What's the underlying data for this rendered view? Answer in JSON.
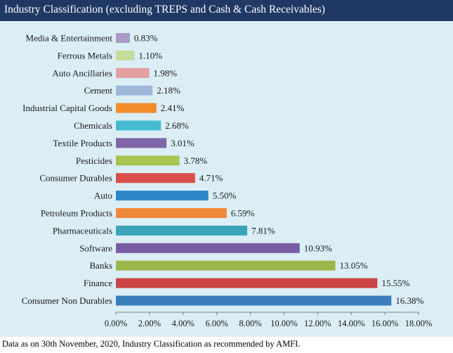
{
  "header": {
    "title": "Industry Classification (excluding TREPS and Cash & Cash Receivables)"
  },
  "footer": {
    "note": "Data as on 30th November, 2020, Industry Classification as recommended by AMFI."
  },
  "chart_data": {
    "type": "bar",
    "orientation": "horizontal",
    "title": "Industry Classification (excluding TREPS and Cash & Cash Receivables)",
    "categories": [
      "Media & Entertainment",
      "Ferrous Metals",
      "Auto Ancillaries",
      "Cement",
      "Industrial Capital Goods",
      "Chemicals",
      "Textile Products",
      "Pesticides",
      "Consumer Durables",
      "Auto",
      "Petroleum Products",
      "Pharmaceuticals",
      "Software",
      "Banks",
      "Finance",
      "Consumer Non Durables"
    ],
    "values": [
      0.83,
      1.1,
      1.98,
      2.18,
      2.41,
      2.68,
      3.01,
      3.78,
      4.71,
      5.5,
      6.59,
      7.81,
      10.93,
      13.05,
      15.55,
      16.38
    ],
    "value_labels": [
      "0.83%",
      "1.10%",
      "1.98%",
      "2.18%",
      "2.41%",
      "2.68%",
      "3.01%",
      "3.78%",
      "4.71%",
      "5.50%",
      "6.59%",
      "7.81%",
      "10.93%",
      "13.05%",
      "15.55%",
      "16.38%"
    ],
    "colors": [
      "#a99bc6",
      "#c5dc9a",
      "#e3a0a0",
      "#9fb8d9",
      "#f28c28",
      "#45bcd2",
      "#7f65a8",
      "#a9c450",
      "#d94f4a",
      "#2e86c8",
      "#f0883a",
      "#3aa4b8",
      "#7a5ca4",
      "#9bb54a",
      "#cc4444",
      "#3a7fbc"
    ],
    "xlim": [
      0,
      18
    ],
    "xticks": [
      "0.00%",
      "2.00%",
      "4.00%",
      "6.00%",
      "8.00%",
      "10.00%",
      "12.00%",
      "14.00%",
      "16.00%",
      "18.00%"
    ],
    "xlabel": "",
    "ylabel": "",
    "grid": false
  }
}
